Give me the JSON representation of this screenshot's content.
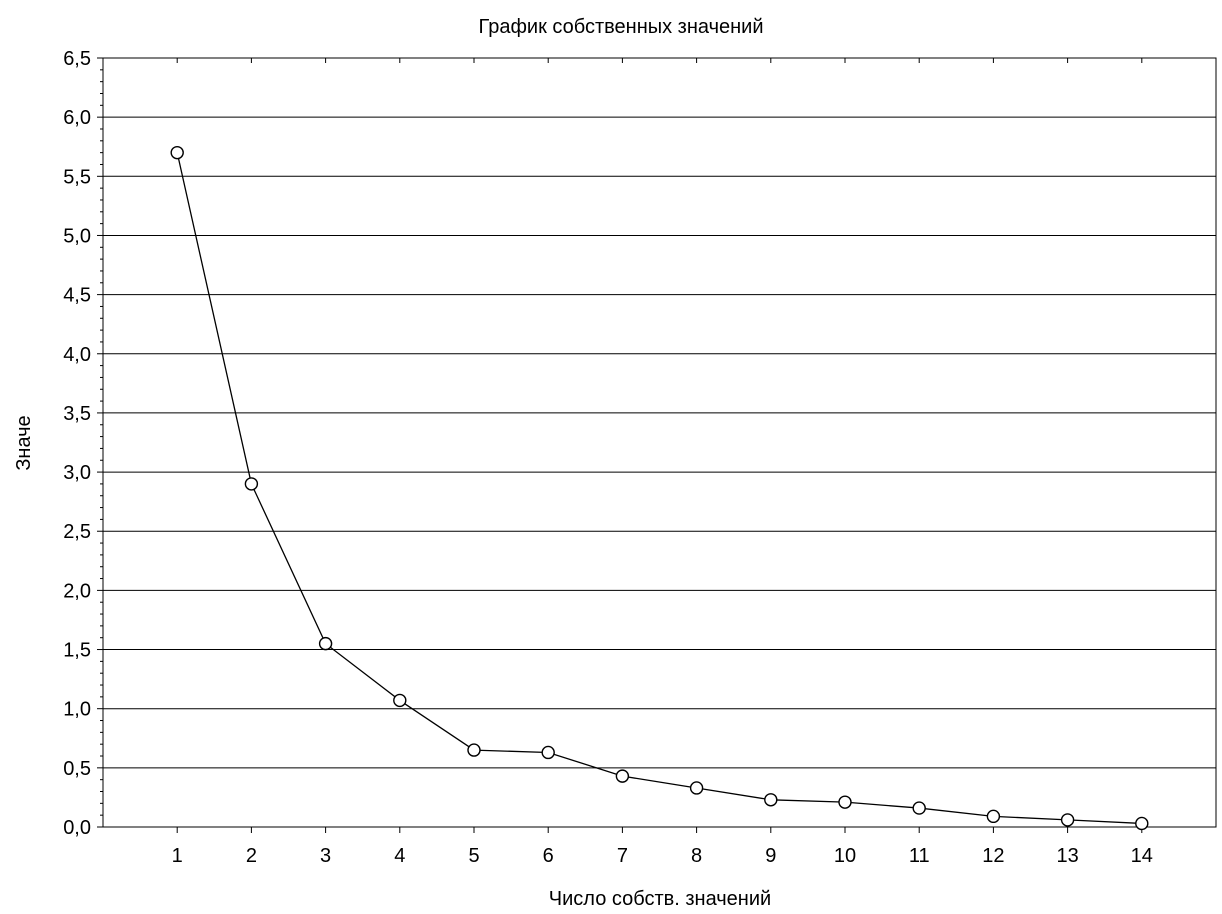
{
  "chart_data": {
    "type": "line",
    "title": "График собственных значений",
    "xlabel": "Число собств. значений",
    "ylabel": "Значе",
    "x": [
      1,
      2,
      3,
      4,
      5,
      6,
      7,
      8,
      9,
      10,
      11,
      12,
      13,
      14
    ],
    "x_tick_labels": [
      "1",
      "2",
      "3",
      "4",
      "5",
      "6",
      "7",
      "8",
      "9",
      "10",
      "11",
      "12",
      "13",
      "14"
    ],
    "y_tick_labels": [
      "0,0",
      "0,5",
      "1,0",
      "1,5",
      "2,0",
      "2,5",
      "3,0",
      "3,5",
      "4,0",
      "4,5",
      "5,0",
      "5,5",
      "6,0",
      "6,5"
    ],
    "ylim": [
      0,
      6.5
    ],
    "xlim": [
      0,
      15
    ],
    "grid": "horizontal",
    "marker": "open-circle",
    "series": [
      {
        "values": [
          5.7,
          2.9,
          1.55,
          1.07,
          0.65,
          0.63,
          0.43,
          0.33,
          0.23,
          0.21,
          0.16,
          0.09,
          0.06,
          0.03
        ]
      }
    ],
    "colors": {
      "line": "#000000",
      "grid": "#000000",
      "background": "#ffffff"
    }
  }
}
